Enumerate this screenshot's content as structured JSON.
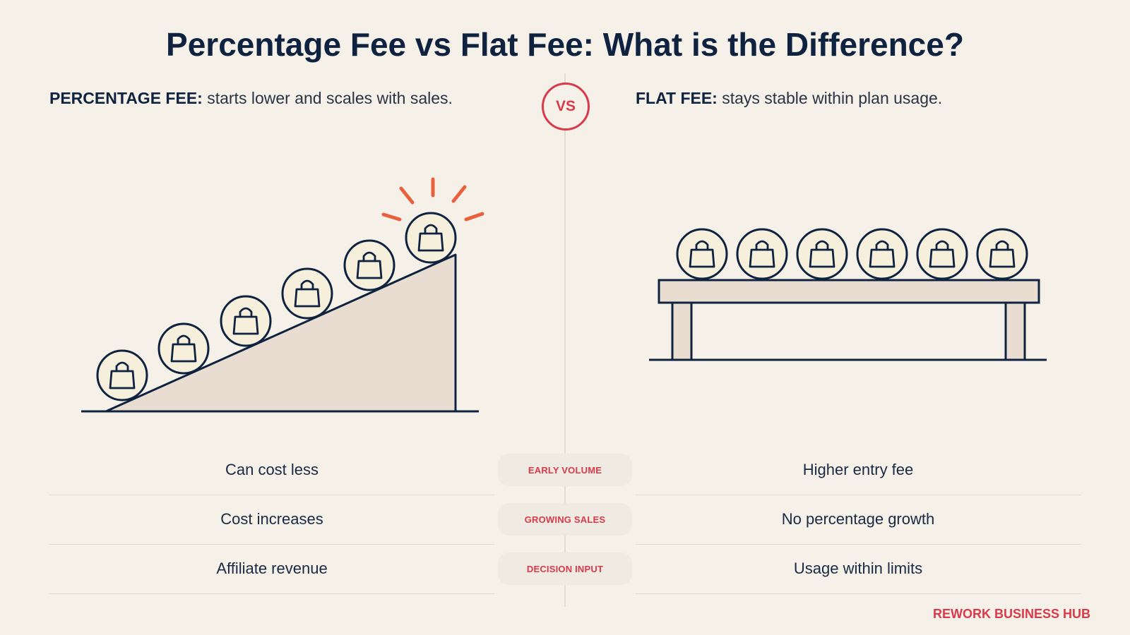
{
  "title": "Percentage Fee vs Flat Fee: What is the Difference?",
  "vs_label": "VS",
  "left": {
    "lead": "PERCENTAGE FEE:",
    "description": " starts lower and scales with sales.",
    "rows": [
      "Can cost less",
      "Cost increases",
      "Affiliate revenue"
    ]
  },
  "right": {
    "lead": "FLAT FEE:",
    "description": " stays stable within plan usage.",
    "rows": [
      "Higher entry fee",
      "No percentage growth",
      "Usage within limits"
    ]
  },
  "categories": [
    "EARLY VOLUME",
    "GROWING SALES",
    "DECISION INPUT"
  ],
  "brand": "REWORK BUSINESS HUB",
  "icons": [
    "shopping-bag-icon",
    "highlight-burst-icon",
    "vs-badge"
  ],
  "colors": {
    "navy": "#0f2340",
    "accent_red": "#d83a4a",
    "burst_orange": "#e8603c",
    "background": "#f5f0e8",
    "ramp_fill": "#e8ddd0",
    "coin_fill": "#f6efdc"
  }
}
